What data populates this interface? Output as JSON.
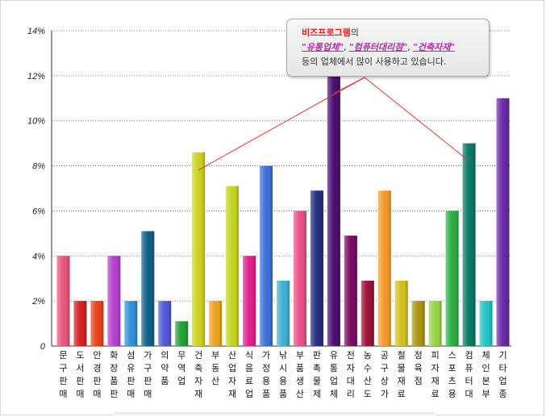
{
  "chart_data": {
    "type": "bar",
    "categories": [
      "문구판매",
      "도서판매",
      "안경판매",
      "화장품판",
      "섬유판매",
      "가구판매",
      "의약품",
      "무역업",
      "건축자재",
      "부동산",
      "산업자재",
      "식음료업",
      "가정용품",
      "낚시용품",
      "부품생산",
      "판촉물제",
      "유통업체",
      "전자대리",
      "농수산도",
      "공구상가",
      "철물재료",
      "정육점",
      "피자재료",
      "스포츠용",
      "컴퓨터대",
      "체인본부",
      "기타업종"
    ],
    "values": [
      4.0,
      2.0,
      2.0,
      4.0,
      2.0,
      5.1,
      2.0,
      1.1,
      8.6,
      2.0,
      7.1,
      4.0,
      8.0,
      2.9,
      6.0,
      6.9,
      12.0,
      4.9,
      2.9,
      6.9,
      2.9,
      2.0,
      2.0,
      6.0,
      9.0,
      2.0,
      11.0
    ],
    "colors": [
      "#e8557a",
      "#d42020",
      "#e8421a",
      "#b63fd0",
      "#2f8fd8",
      "#105f88",
      "#4f59d8",
      "#23a035",
      "#cbd221",
      "#f0a020",
      "#c6d41e",
      "#e0208e",
      "#3c6fd8",
      "#3fb0d6",
      "#ea4f88",
      "#23307e",
      "#4c0e72",
      "#7a0a62",
      "#9a1038",
      "#f59a2c",
      "#d4c01c",
      "#aa9310",
      "#9ad448",
      "#2ead44",
      "#0a7a66",
      "#22c4c4",
      "#6a2aa8"
    ],
    "y_ticks": [
      "0",
      "2%",
      "4%",
      "6%",
      "8%",
      "10%",
      "12%",
      "14%"
    ],
    "ylim": [
      0,
      14
    ],
    "grid": "horizontal dotted",
    "title": "",
    "xlabel": "",
    "ylabel": ""
  },
  "callout": {
    "line1_highlight": "비즈프로그램",
    "line1_rest": "의",
    "line2_a": "\"유통업체\"",
    "line2_sep1": ", ",
    "line2_b": "\"컴퓨터대리점\"",
    "line2_sep2": ", ",
    "line2_c": "\"건축자재\"",
    "line3": "등의 업체에서 많이 사용하고 있습니다."
  },
  "callout_targets": [
    8,
    16,
    24
  ]
}
